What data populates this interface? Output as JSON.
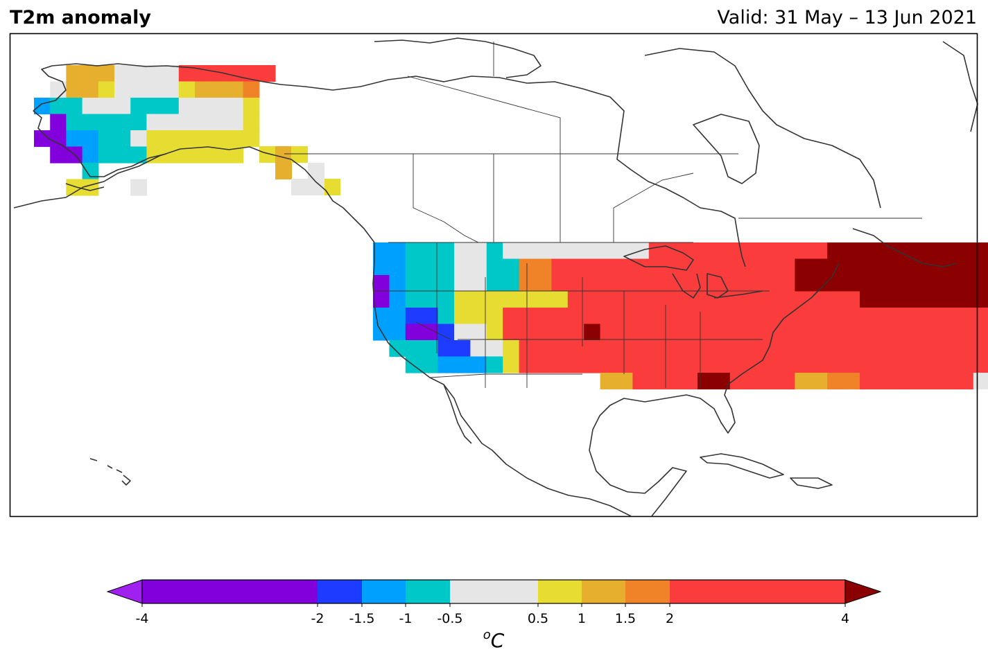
{
  "header": {
    "title": "T2m anomaly",
    "valid": "Valid: 31 May – 13 Jun 2021"
  },
  "colorbar": {
    "unit_label": "ᵒC",
    "ticks": [
      "-4",
      "-2",
      "-1.5",
      "-1",
      "-0.5",
      "0.5",
      "1",
      "1.5",
      "2",
      "4"
    ],
    "bins": [
      {
        "label": "< -4",
        "color": "#a020f0"
      },
      {
        "label": "-4 to -2",
        "color": "#8200dc"
      },
      {
        "label": "-2 to -1.5",
        "color": "#1e3cff"
      },
      {
        "label": "-1.5 to -1",
        "color": "#00a0ff"
      },
      {
        "label": "-1 to -0.5",
        "color": "#00c8c8"
      },
      {
        "label": "-0.5 to 0.5",
        "color": "#e6e6e6"
      },
      {
        "label": "0.5 to 1",
        "color": "#e6dc32"
      },
      {
        "label": "1 to 1.5",
        "color": "#e6af2d"
      },
      {
        "label": "1.5 to 2",
        "color": "#f08228"
      },
      {
        "label": "2 to 4",
        "color": "#fa3c3c"
      },
      {
        "label": "> 4",
        "color": "#8b0000"
      }
    ]
  },
  "map_data": {
    "legend": {
      "P": "#8200dc",
      "B": "#1e3cff",
      "L": "#00a0ff",
      "C": "#00c8c8",
      "G": "#e6e6e6",
      "Y": "#e6dc32",
      "A": "#e6af2d",
      "O": "#f08228",
      "R": "#fa3c3c",
      "D": "#8b0000"
    },
    "grid_conus": [
      "LLCCCGGCGGGGGGGGGRRRRRRRRRRRDDDDDDDDDDDDDDDDDDR....",
      "LLCCCGGCCOORRRRRRRRRRRRRRRDDDDDDDDDDDDDDDDDDDDDDDD..",
      "PLCCCGGCCOORRRRRRRRRRRRRRRDDDDDDDDDDDDDDDDDDDDDDDDRRRRRRRRRRRRRRR",
      "PLCCCYYYYYYYRRRRRRRRRRRRRRRRRRDDDDDDDDDDDDDDDDDDRRRRRRRRRRRRRRRRR",
      "LLBBCYYYRRRRRRRRRRRRRRRRRRRRRRRRRRRRRRRRRRRRRRRRRRRRRRRRRRRRRRR",
      "LLPPBGGYRRRRRDRRRRRRRRRRRRRRRRRRRRRRRRRRRRRRRRRRRRRRRRRRRRRRR",
      ".CCCBBGGYRRRRRRRRRRRRRRRRRRRRRRRRRRRRRRRRRRRRRRRRRRRRRRRRRR",
      "..CCLLLCYRRRRRRRRRRRRRRRRRRRRRRRRRRRRRRRRRROOOOOOOOOOOOOOO",
      "..............AARRRRDDRRRRAAOORRRRRRRGYYYYAAAAAAAAAAA"
    ]
  }
}
